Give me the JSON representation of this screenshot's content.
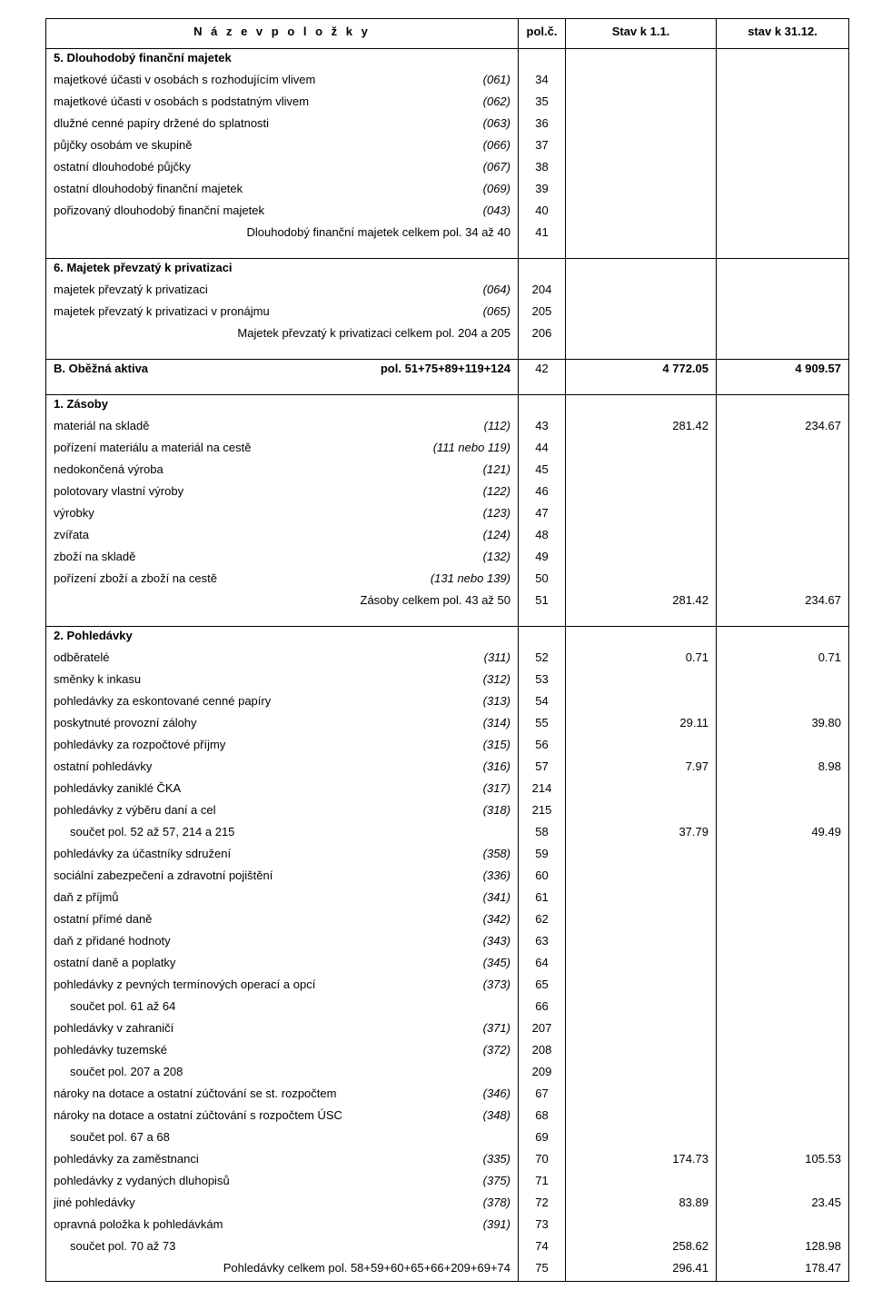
{
  "header": {
    "name": "N á z e v   p o l o ž k y",
    "pol": "pol.č.",
    "v1": "Stav  k  1.1.",
    "v2": "stav k 31.12."
  },
  "rows": [
    {
      "type": "section",
      "label": "5. Dlouhodobý finanční majetek"
    },
    {
      "type": "line",
      "label": "majetkové účasti v osobách s rozhodujícím vlivem",
      "code": "(061)",
      "pol": "34"
    },
    {
      "type": "line",
      "label": "majetkové účasti v osobách s podstatným vlivem",
      "code": "(062)",
      "pol": "35"
    },
    {
      "type": "line",
      "label": "dlužné cenné papíry držené do splatnosti",
      "code": "(063)",
      "pol": "36"
    },
    {
      "type": "line",
      "label": "půjčky osobám ve skupině",
      "code": "(066)",
      "pol": "37"
    },
    {
      "type": "line",
      "label": "ostatní dlouhodobé půjčky",
      "code": "(067)",
      "pol": "38"
    },
    {
      "type": "line",
      "label": "ostatní dlouhodobý finanční majetek",
      "code": "(069)",
      "pol": "39"
    },
    {
      "type": "line",
      "label": "pořizovaný dlouhodobý finanční majetek",
      "code": "(043)",
      "pol": "40"
    },
    {
      "type": "total",
      "label": "Dlouhodobý finanční majetek celkem  pol. 34 až 40",
      "pol": "41"
    },
    {
      "type": "spacer"
    },
    {
      "type": "section",
      "sep": true,
      "label": "6. Majetek převzatý k privatizaci"
    },
    {
      "type": "line",
      "label": "majetek převzatý k privatizaci",
      "code": "(064)",
      "pol": "204"
    },
    {
      "type": "line",
      "label": "majetek převzatý k privatizaci v pronájmu",
      "code": "(065)",
      "pol": "205"
    },
    {
      "type": "total",
      "label": "Majetek převzatý k privatizaci celkem  pol. 204 a 205",
      "pol": "206"
    },
    {
      "type": "spacer"
    },
    {
      "type": "bigline",
      "sep": true,
      "label": "B.   Oběžná aktiva",
      "code": "pol. 51+75+89+119+124",
      "pol": "42",
      "v1": "4 772.05",
      "v2": "4 909.57"
    },
    {
      "type": "spacer",
      "sepbottom": true
    },
    {
      "type": "section",
      "label": "1. Zásoby"
    },
    {
      "type": "line",
      "label": "materiál na skladě",
      "code": "(112)",
      "pol": "43",
      "v1": "281.42",
      "v2": "234.67"
    },
    {
      "type": "line",
      "label": "pořízení materiálu a materiál na cestě",
      "code": "(111 nebo 119)",
      "pol": "44"
    },
    {
      "type": "line",
      "label": "nedokončená výroba",
      "code": "(121)",
      "pol": "45"
    },
    {
      "type": "line",
      "label": "polotovary vlastní výroby",
      "code": "(122)",
      "pol": "46"
    },
    {
      "type": "line",
      "label": "výrobky",
      "code": "(123)",
      "pol": "47"
    },
    {
      "type": "line",
      "label": "zvířata",
      "code": "(124)",
      "pol": "48"
    },
    {
      "type": "line",
      "label": "zboží na skladě",
      "code": "(132)",
      "pol": "49"
    },
    {
      "type": "line",
      "label": "pořízení zboží a zboží na cestě",
      "code": "(131 nebo 139)",
      "pol": "50"
    },
    {
      "type": "total",
      "label": "Zásoby celkem pol. 43 až 50",
      "pol": "51",
      "v1": "281.42",
      "v2": "234.67"
    },
    {
      "type": "spacer"
    },
    {
      "type": "section",
      "sep": true,
      "label": "2. Pohledávky"
    },
    {
      "type": "line",
      "label": "odběratelé",
      "code": "(311)",
      "pol": "52",
      "v1": "0.71",
      "v2": "0.71"
    },
    {
      "type": "line",
      "label": "směnky k inkasu",
      "code": "(312)",
      "pol": "53"
    },
    {
      "type": "line",
      "label": "pohledávky za eskontované cenné papíry",
      "code": "(313)",
      "pol": "54"
    },
    {
      "type": "line",
      "label": "poskytnuté provozní zálohy",
      "code": "(314)",
      "pol": "55",
      "v1": "29.11",
      "v2": "39.80"
    },
    {
      "type": "line",
      "label": "pohledávky za rozpočtové příjmy",
      "code": "(315)",
      "pol": "56"
    },
    {
      "type": "line",
      "label": "ostatní pohledávky",
      "code": "(316)",
      "pol": "57",
      "v1": "7.97",
      "v2": "8.98"
    },
    {
      "type": "line",
      "label": "pohledávky zaniklé ČKA",
      "code": "(317)",
      "pol": "214"
    },
    {
      "type": "line",
      "label": "pohledávky z výběru daní a cel",
      "code": "(318)",
      "pol": "215"
    },
    {
      "type": "subtotal",
      "label": "součet pol. 52 až 57, 214 a 215",
      "pol": "58",
      "v1": "37.79",
      "v2": "49.49"
    },
    {
      "type": "line",
      "label": "pohledávky za účastníky sdružení",
      "code": "(358)",
      "pol": "59"
    },
    {
      "type": "line",
      "label": "sociální zabezpečení a zdravotní pojištění",
      "code": "(336)",
      "pol": "60"
    },
    {
      "type": "line",
      "label": "daň z příjmů",
      "code": "(341)",
      "pol": "61"
    },
    {
      "type": "line",
      "label": "ostatní přímé daně",
      "code": "(342)",
      "pol": "62"
    },
    {
      "type": "line",
      "label": "daň z přidané hodnoty",
      "code": "(343)",
      "pol": "63"
    },
    {
      "type": "line",
      "label": "ostatní daně a poplatky",
      "code": "(345)",
      "pol": "64"
    },
    {
      "type": "line",
      "label": "pohledávky z pevných termínových operací a opcí",
      "code": "(373)",
      "pol": "65"
    },
    {
      "type": "subtotal",
      "label": "součet pol. 61 až 64",
      "pol": "66"
    },
    {
      "type": "line",
      "label": "pohledávky v zahraničí",
      "code": "(371)",
      "pol": "207"
    },
    {
      "type": "line",
      "label": "pohledávky tuzemské",
      "code": "(372)",
      "pol": "208"
    },
    {
      "type": "subtotal",
      "label": "součet pol. 207 a 208",
      "pol": "209"
    },
    {
      "type": "line",
      "label": "nároky na dotace a ostatní zúčtování se st. rozpočtem",
      "code": "(346)",
      "pol": "67"
    },
    {
      "type": "line",
      "label": "nároky na dotace a ostatní zúčtování s rozpočtem ÚSC",
      "code": "(348)",
      "pol": "68"
    },
    {
      "type": "subtotal",
      "label": "součet pol. 67 a 68",
      "pol": "69"
    },
    {
      "type": "line",
      "label": "pohledávky za zaměstnanci",
      "code": "(335)",
      "pol": "70",
      "v1": "174.73",
      "v2": "105.53"
    },
    {
      "type": "line",
      "label": "pohledávky z vydaných dluhopisů",
      "code": "(375)",
      "pol": "71"
    },
    {
      "type": "line",
      "label": "jiné pohledávky",
      "code": "(378)",
      "pol": "72",
      "v1": "83.89",
      "v2": "23.45"
    },
    {
      "type": "line",
      "label": "opravná položka k pohledávkám",
      "code": "(391)",
      "pol": "73"
    },
    {
      "type": "subtotal",
      "label": "součet pol. 70 až 73",
      "pol": "74",
      "v1": "258.62",
      "v2": "128.98"
    },
    {
      "type": "total",
      "sepbottom": true,
      "label": "Pohledávky celkem pol. 58+59+60+65+66+209+69+74",
      "pol": "75",
      "v1": "296.41",
      "v2": "178.47"
    }
  ]
}
